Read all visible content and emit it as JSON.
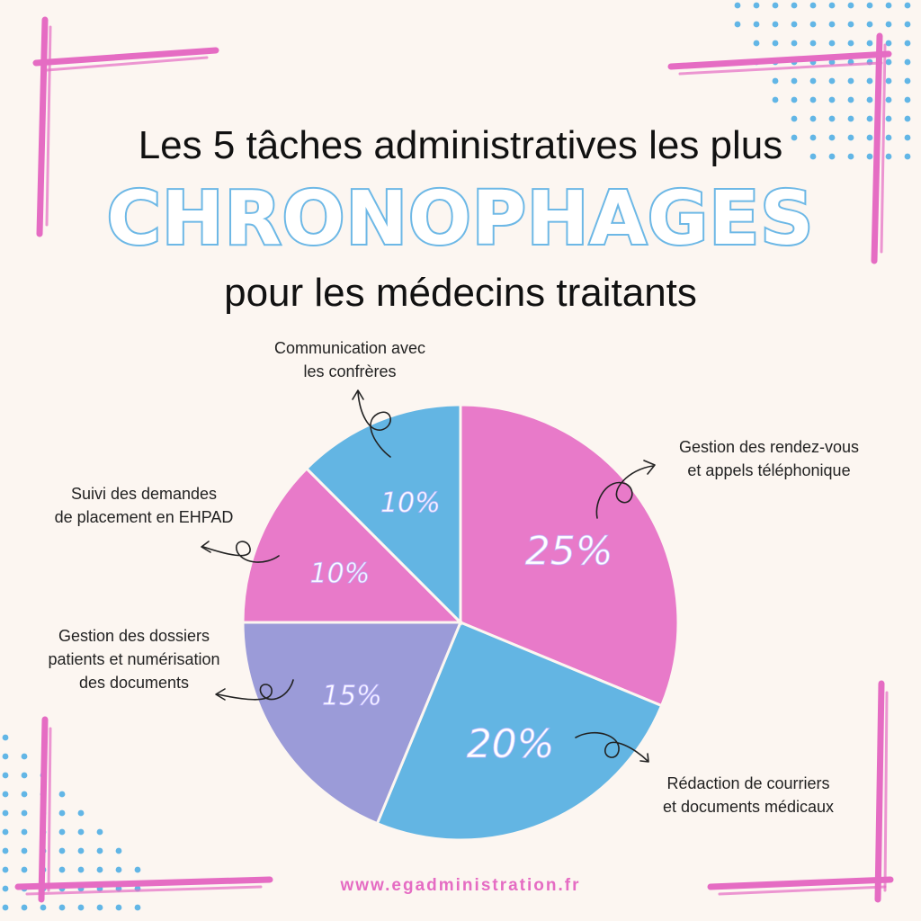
{
  "header": {
    "line1": "Les 5 tâches administratives les plus",
    "line2": "CHRONOPHAGES",
    "line3": "pour les médecins traitants"
  },
  "labels": {
    "rdv": [
      "Gestion des rendez-vous",
      "et appels téléphonique"
    ],
    "courriers": [
      "Rédaction de courriers",
      "et documents médicaux"
    ],
    "dossiers": [
      "Gestion des dossiers",
      "patients et numérisation",
      "des documents"
    ],
    "ehpad": [
      "Suivi des demandes",
      "de placement en EHPAD"
    ],
    "confreres": [
      "Communication avec",
      "les confrères"
    ]
  },
  "footer": {
    "url": "www.egadministration.fr"
  },
  "colors": {
    "pink": "#e87ac9",
    "blue": "#63b5e3",
    "purple": "#9b9bd8",
    "accent": "#e56cc3",
    "title_stroke": "#6db8e6",
    "dot_blue": "#62b6e6"
  },
  "chart_data": {
    "type": "pie",
    "start_angle_deg": 0,
    "slices": [
      {
        "label": "Gestion des rendez-vous et appels téléphonique",
        "value": 25,
        "display": "25%",
        "color": "#e87ac9"
      },
      {
        "label": "Rédaction de courriers et documents médicaux",
        "value": 20,
        "display": "20%",
        "color": "#63b5e3"
      },
      {
        "label": "Gestion des dossiers patients et numérisation des documents",
        "value": 15,
        "display": "15%",
        "color": "#9b9bd8"
      },
      {
        "label": "Suivi des demandes de placement en EHPAD",
        "value": 10,
        "display": "10%",
        "color": "#e87ac9"
      },
      {
        "label": "Communication avec les confrères",
        "value": 10,
        "display": "10%",
        "color": "#63b5e3"
      }
    ]
  }
}
